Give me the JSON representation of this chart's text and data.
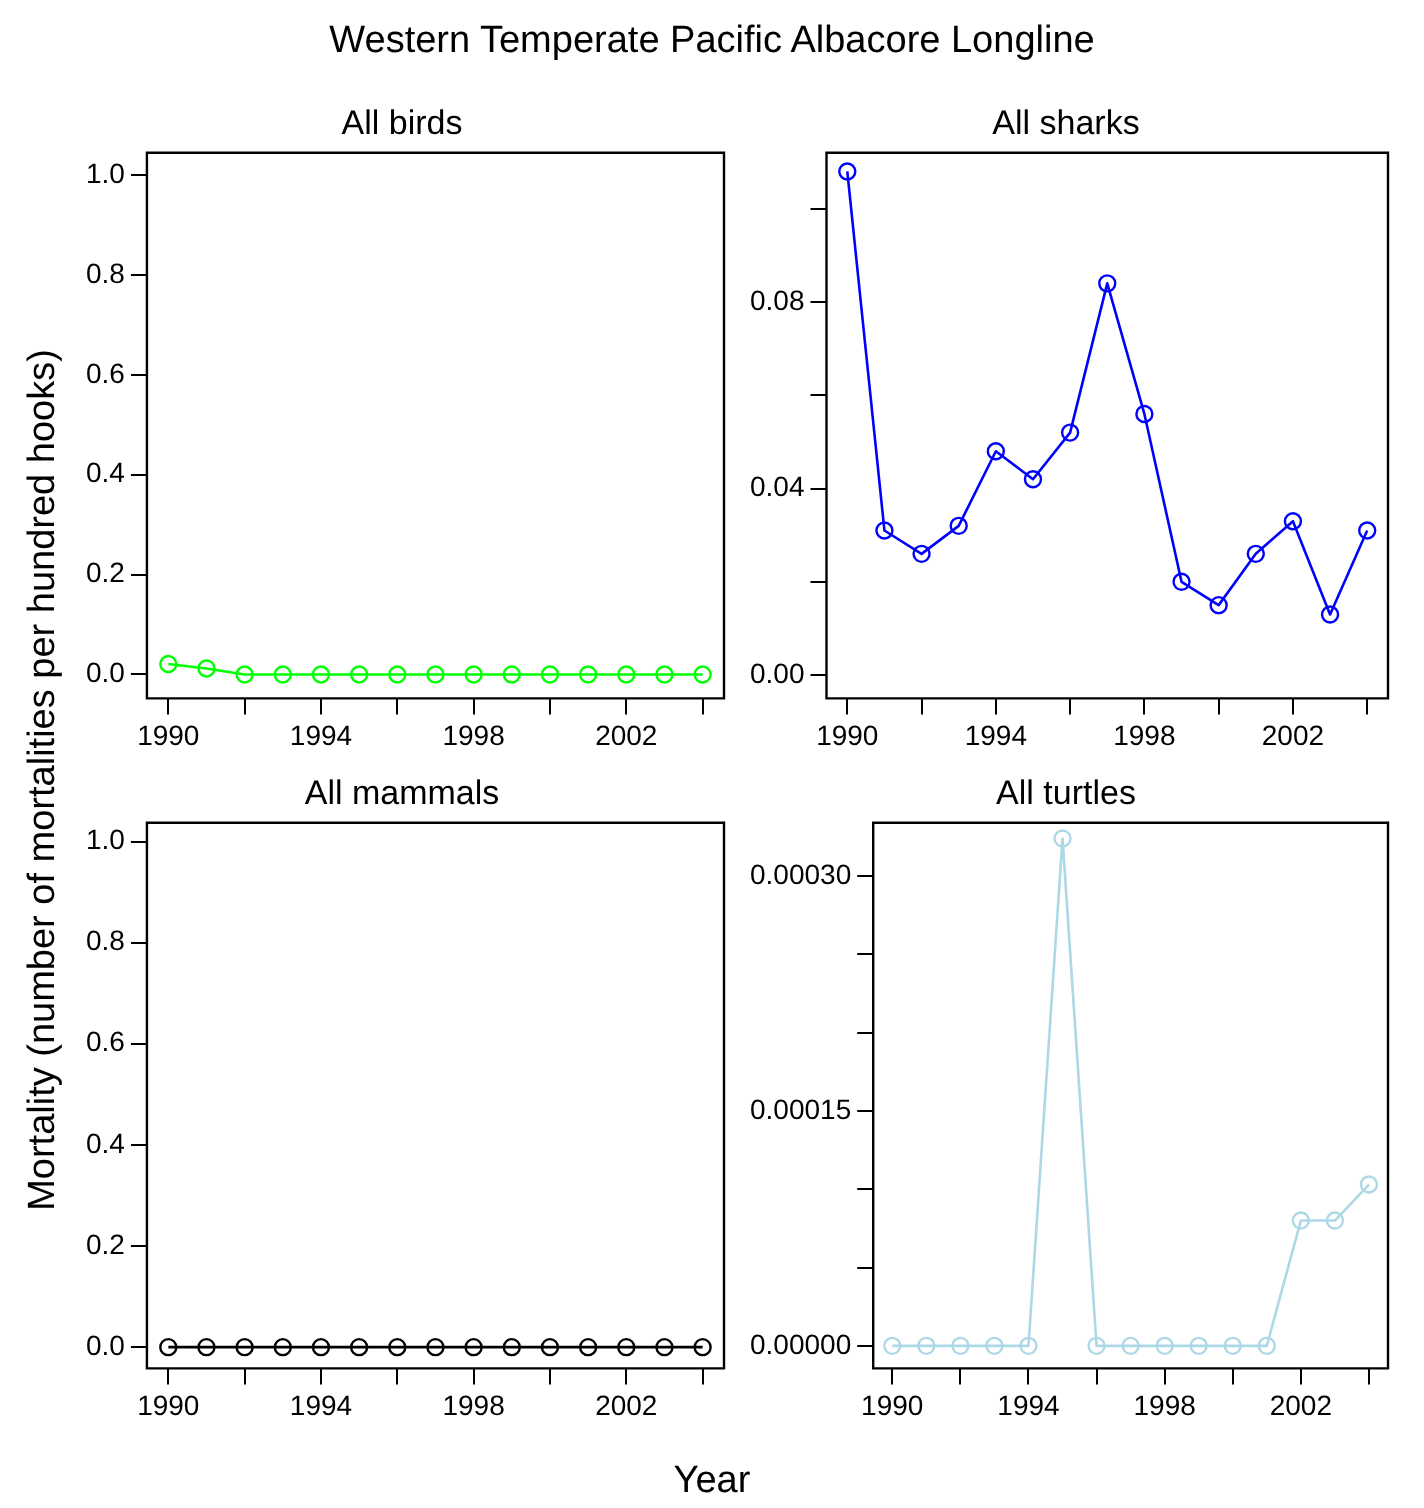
{
  "chart_data": [
    {
      "type": "line",
      "title": "All birds",
      "annotations": [
        "Western Temperate Pacific Albacore Longline"
      ],
      "ylabel": "Mortality (number of mortalities per hundred hooks)",
      "x": [
        1990,
        1991,
        1992,
        1993,
        1994,
        1995,
        1996,
        1997,
        1998,
        1999,
        2000,
        2001,
        2002,
        2003,
        2004
      ],
      "values": [
        0.021,
        0.012,
        0,
        0,
        0,
        0,
        0,
        0,
        0,
        0,
        0,
        0,
        0,
        0,
        0
      ],
      "color": "#00ff00",
      "marker": "circle",
      "line_style": "solid",
      "grid": false,
      "legend": false,
      "xlim": [
        1989.44,
        2004.56
      ],
      "xticks": [
        1990,
        {
          "value": 1992,
          "label": null
        },
        1994,
        {
          "value": 1996,
          "label": null
        },
        1998,
        {
          "value": 2000,
          "label": null
        },
        2002,
        {
          "value": 2004,
          "label": null
        }
      ],
      "ylim": [
        -0.048,
        1.045
      ],
      "yticks": [
        {
          "value": 0,
          "label": "0.0"
        },
        {
          "value": 0.2,
          "label": "0.2"
        },
        {
          "value": 0.4,
          "label": "0.4"
        },
        {
          "value": 0.6,
          "label": "0.6"
        },
        {
          "value": 0.8,
          "label": "0.8"
        },
        {
          "value": 1,
          "label": "1.0"
        }
      ]
    },
    {
      "type": "line",
      "title": "All sharks",
      "x": [
        1990,
        1991,
        1992,
        1993,
        1994,
        1995,
        1996,
        1997,
        1998,
        1999,
        2000,
        2001,
        2002,
        2003,
        2004
      ],
      "values": [
        0.108,
        0.031,
        0.026,
        0.032,
        0.048,
        0.042,
        0.052,
        0.084,
        0.056,
        0.02,
        0.015,
        0.026,
        0.033,
        0.013,
        0.031
      ],
      "color": "#0000ff",
      "marker": "circle",
      "line_style": "solid",
      "grid": false,
      "legend": false,
      "xlim": [
        1989.44,
        2004.56
      ],
      "xticks": [
        1990,
        {
          "value": 1992,
          "label": null
        },
        1994,
        {
          "value": 1996,
          "label": null
        },
        1998,
        {
          "value": 2000,
          "label": null
        },
        2002,
        {
          "value": 2004,
          "label": null
        }
      ],
      "ylim": [
        -0.005,
        0.112
      ],
      "yticks": [
        {
          "value": 0,
          "label": "0.00"
        },
        {
          "value": 0.02,
          "label": null
        },
        {
          "value": 0.04,
          "label": "0.04"
        },
        {
          "value": 0.06,
          "label": null
        },
        {
          "value": 0.08,
          "label": "0.08"
        },
        {
          "value": 0.1,
          "label": null
        }
      ]
    },
    {
      "type": "line",
      "title": "All mammals",
      "xlabel": "Year",
      "x": [
        1990,
        1991,
        1992,
        1993,
        1994,
        1995,
        1996,
        1997,
        1998,
        1999,
        2000,
        2001,
        2002,
        2003,
        2004
      ],
      "values": [
        0,
        0,
        0,
        0,
        0,
        0,
        0,
        0,
        0,
        0,
        0,
        0,
        0,
        0,
        0
      ],
      "color": "#000000",
      "marker": "circle",
      "line_style": "solid",
      "grid": false,
      "legend": false,
      "xlim": [
        1989.44,
        2004.56
      ],
      "xticks": [
        1990,
        {
          "value": 1992,
          "label": null
        },
        1994,
        {
          "value": 1996,
          "label": null
        },
        1998,
        {
          "value": 2000,
          "label": null
        },
        2002,
        {
          "value": 2004,
          "label": null
        }
      ],
      "ylim": [
        -0.042,
        1.037
      ],
      "yticks": [
        {
          "value": 0,
          "label": "0.0"
        },
        {
          "value": 0.2,
          "label": "0.2"
        },
        {
          "value": 0.4,
          "label": "0.4"
        },
        {
          "value": 0.6,
          "label": "0.6"
        },
        {
          "value": 0.8,
          "label": "0.8"
        },
        {
          "value": 1,
          "label": "1.0"
        }
      ]
    },
    {
      "type": "line",
      "title": "All turtles",
      "x": [
        1990,
        1991,
        1992,
        1993,
        1994,
        1995,
        1996,
        1997,
        1998,
        1999,
        2000,
        2001,
        2002,
        2003,
        2004
      ],
      "values": [
        0,
        0,
        0,
        0,
        0,
        0.000324,
        0,
        0,
        0,
        0,
        0,
        0,
        8e-05,
        8e-05,
        0.000103
      ],
      "color": "#add8e6",
      "marker": "circle",
      "line_style": "solid",
      "grid": false,
      "legend": false,
      "xlim": [
        1989.44,
        2004.56
      ],
      "xticks": [
        1990,
        {
          "value": 1992,
          "label": null
        },
        1994,
        {
          "value": 1996,
          "label": null
        },
        1998,
        {
          "value": 2000,
          "label": null
        },
        2002,
        {
          "value": 2004,
          "label": null
        }
      ],
      "ylim": [
        -1.44e-05,
        0.000334
      ],
      "yticks": [
        {
          "value": 0,
          "label": "0.00000"
        },
        {
          "value": 5e-05,
          "label": null
        },
        {
          "value": 0.0001,
          "label": null
        },
        {
          "value": 0.00015,
          "label": "0.00015"
        },
        {
          "value": 0.0002,
          "label": null
        },
        {
          "value": 0.00025,
          "label": null
        },
        {
          "value": 0.0003,
          "label": "0.00030"
        }
      ]
    }
  ]
}
